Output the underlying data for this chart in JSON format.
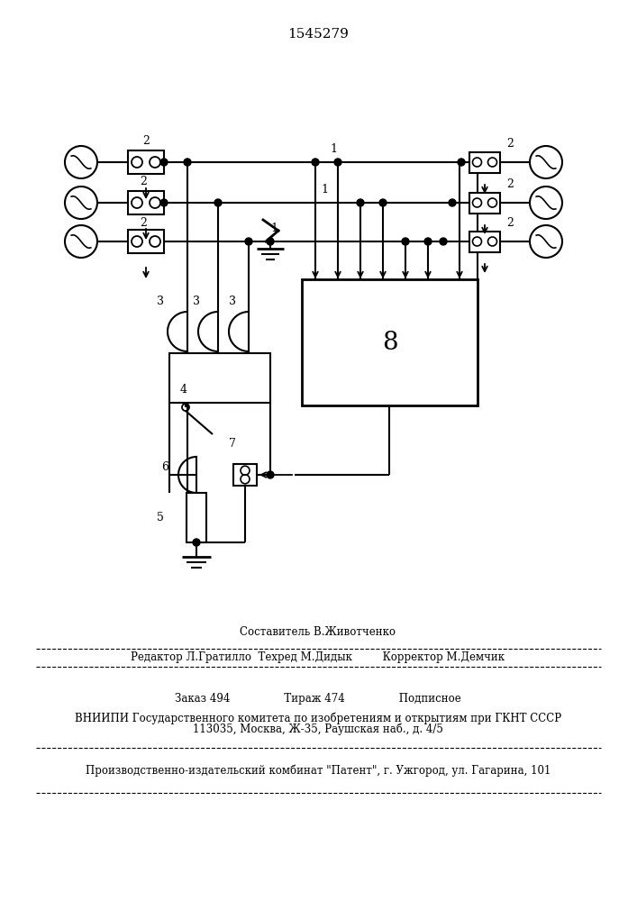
{
  "title": "1545279",
  "bg_color": "#ffffff",
  "footer": {
    "line1": "Составитель В.Животченко",
    "line2": "Редактор Л.Гратилло  Техред М.Дидык         Корректор М.Демчик",
    "line3": "Заказ 494                Тираж 474                Подписное",
    "line4": "ВНИИПИ Государственного комитета по изобретениям и открытиям при ГКНТ СССР",
    "line5": "113035, Москва, Ж-35, Раушская наб., д. 4/5",
    "line6": "Производственно-издательский комбинат \"Патент\", г. Ужгород, ул. Гагарина, 101"
  }
}
